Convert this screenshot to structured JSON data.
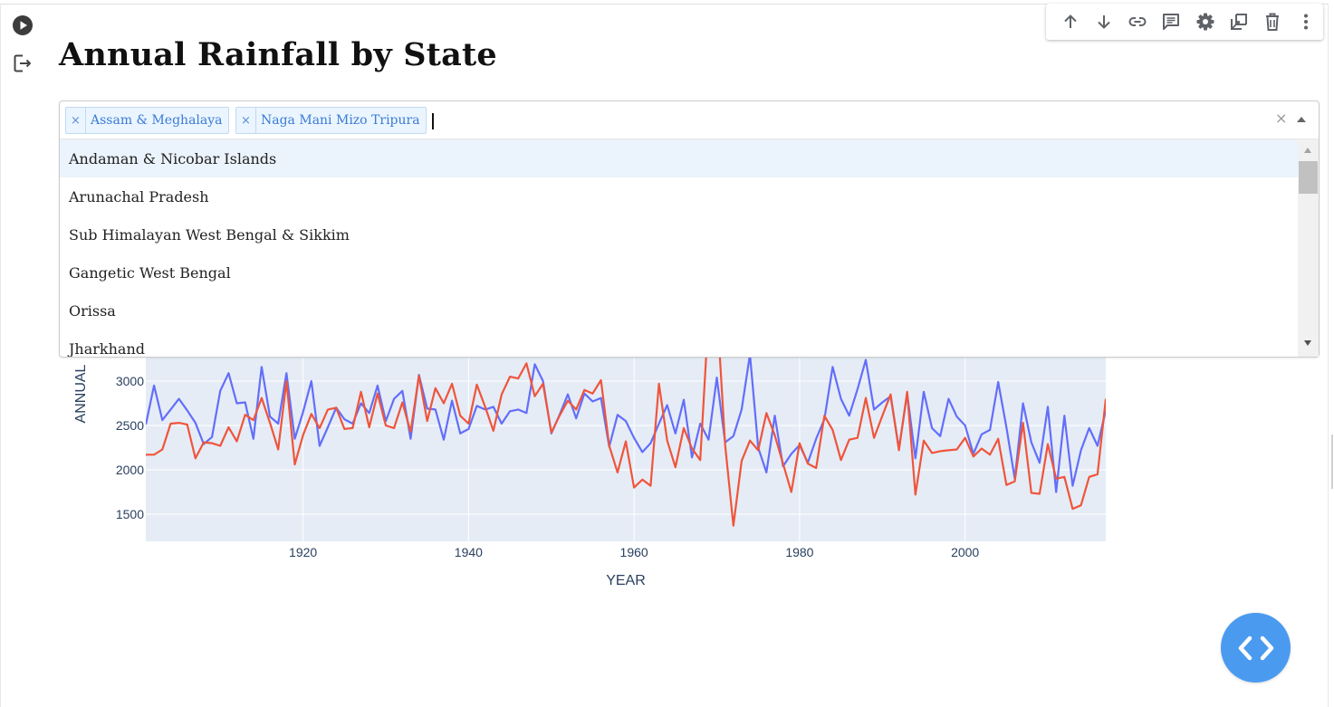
{
  "notebook": {
    "gutter_icons": [
      "play-icon",
      "output-icon"
    ],
    "cell_toolbar": [
      "arrow-up-icon",
      "arrow-down-icon",
      "link-icon",
      "comment-icon",
      "gear-icon",
      "open-in-tab-icon",
      "trash-icon",
      "more-vert-icon"
    ],
    "fab_icon": "code-brackets-icon"
  },
  "app": {
    "title": "Annual Rainfall by State"
  },
  "state_select": {
    "selected": [
      "Assam & Meghalaya",
      "Naga Mani Mizo Tripura"
    ],
    "clear_symbol": "×",
    "chip_remove_symbol": "×",
    "options": [
      "Andaman & Nicobar Islands",
      "Arunachal Pradesh",
      "Sub Himalayan West Bengal & Sikkim",
      "Gangetic West Bengal",
      "Orissa",
      "Jharkhand"
    ],
    "focused_index": 0
  },
  "colors": {
    "series_1": "#636efa",
    "series_2": "#ef553b",
    "plot_bg": "#e5ecf6",
    "chip_text": "#3a7bd5",
    "fab": "#4a9bf0"
  },
  "chart_data": {
    "type": "line",
    "xlabel": "YEAR",
    "ylabel": "ANNUAL",
    "xlim": [
      1901,
      2017
    ],
    "x_ticks": [
      1920,
      1940,
      1960,
      1980,
      2000
    ],
    "y_ticks": [
      1500,
      2000,
      2500,
      3000
    ],
    "grid": true,
    "series": [
      {
        "name": "Assam & Meghalaya",
        "color": "#636efa",
        "x_start": 1901,
        "values": [
          2510,
          2950,
          2560,
          2680,
          2800,
          2670,
          2530,
          2290,
          2370,
          2890,
          3090,
          2750,
          2760,
          2350,
          3160,
          2600,
          2520,
          3090,
          2350,
          2650,
          3000,
          2270,
          2480,
          2700,
          2570,
          2520,
          2750,
          2640,
          2950,
          2550,
          2800,
          2890,
          2350,
          3070,
          2690,
          2680,
          2340,
          2780,
          2410,
          2460,
          2720,
          2680,
          2710,
          2520,
          2660,
          2680,
          2640,
          3190,
          3000,
          2410,
          2620,
          2850,
          2580,
          2860,
          2770,
          2810,
          2260,
          2620,
          2550,
          2360,
          2200,
          2300,
          2520,
          2730,
          2410,
          2790,
          2140,
          2520,
          2340,
          3040,
          2310,
          2380,
          2680,
          3300,
          2250,
          1970,
          2610,
          2040,
          2180,
          2280,
          2080,
          2350,
          2570,
          3160,
          2800,
          2610,
          2910,
          3240,
          2680,
          2760,
          2830,
          2240,
          2860,
          2130,
          2880,
          2470,
          2380,
          2800,
          2600,
          2500,
          2180,
          2400,
          2450,
          2990,
          2480,
          1900,
          2750,
          2310,
          2080,
          2710,
          1750,
          2610,
          1820,
          2220,
          2470,
          2270,
          2670
        ]
      },
      {
        "name": "Naga Mani Mizo Tripura",
        "color": "#ef553b",
        "x_start": 1901,
        "values": [
          2170,
          2170,
          2230,
          2520,
          2530,
          2510,
          2130,
          2310,
          2300,
          2270,
          2480,
          2320,
          2620,
          2560,
          2810,
          2530,
          2230,
          3000,
          2060,
          2390,
          2630,
          2470,
          2680,
          2700,
          2460,
          2470,
          2880,
          2480,
          2860,
          2500,
          2470,
          2760,
          2430,
          3060,
          2550,
          2920,
          2750,
          2970,
          2610,
          2520,
          2960,
          2710,
          2440,
          2850,
          3050,
          3030,
          3200,
          2830,
          2970,
          2420,
          2610,
          2780,
          2680,
          2900,
          2860,
          3010,
          2270,
          1970,
          2320,
          1800,
          1890,
          1820,
          2970,
          2330,
          2030,
          2470,
          2240,
          2110,
          3750,
          3850,
          2280,
          1370,
          2100,
          2330,
          2220,
          2640,
          2390,
          2070,
          1750,
          2300,
          2070,
          2020,
          2610,
          2450,
          2110,
          2340,
          2360,
          2810,
          2360,
          2610,
          2850,
          2220,
          2880,
          1720,
          2330,
          2190,
          2210,
          2220,
          2230,
          2360,
          2150,
          2240,
          2170,
          2350,
          1830,
          1870,
          2530,
          1740,
          1730,
          2290,
          1900,
          1920,
          1560,
          1600,
          1920,
          1950,
          2800
        ]
      }
    ]
  }
}
